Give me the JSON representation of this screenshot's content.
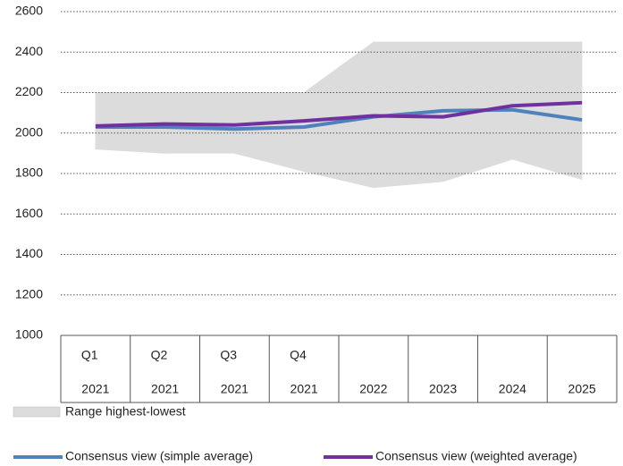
{
  "chart_data": {
    "type": "line",
    "quarters": [
      "Q1",
      "Q2",
      "Q3",
      "Q4",
      null,
      null,
      null,
      null
    ],
    "categories": [
      "2021",
      "2021",
      "2021",
      "2021",
      "2022",
      "2023",
      "2024",
      "2025"
    ],
    "range": {
      "name": "Range highest-lowest",
      "color": "#dcdcdc",
      "high": [
        2200,
        2200,
        2200,
        2200,
        2450,
        2450,
        2450,
        2450
      ],
      "low": [
        1920,
        1900,
        1900,
        1810,
        1730,
        1760,
        1870,
        1770
      ]
    },
    "series": [
      {
        "name": "Consensus view (simple average)",
        "color": "#4f81bd",
        "values": [
          2030,
          2030,
          2020,
          2030,
          2080,
          2110,
          2115,
          2065
        ]
      },
      {
        "name": "Consensus view (weighted average)",
        "color": "#7030a0",
        "values": [
          2035,
          2045,
          2040,
          2060,
          2085,
          2080,
          2135,
          2150
        ]
      }
    ],
    "ylim": [
      1000,
      2600
    ],
    "yticks": [
      1000,
      1200,
      1400,
      1600,
      1800,
      2000,
      2200,
      2400,
      2600
    ],
    "grid": true
  }
}
